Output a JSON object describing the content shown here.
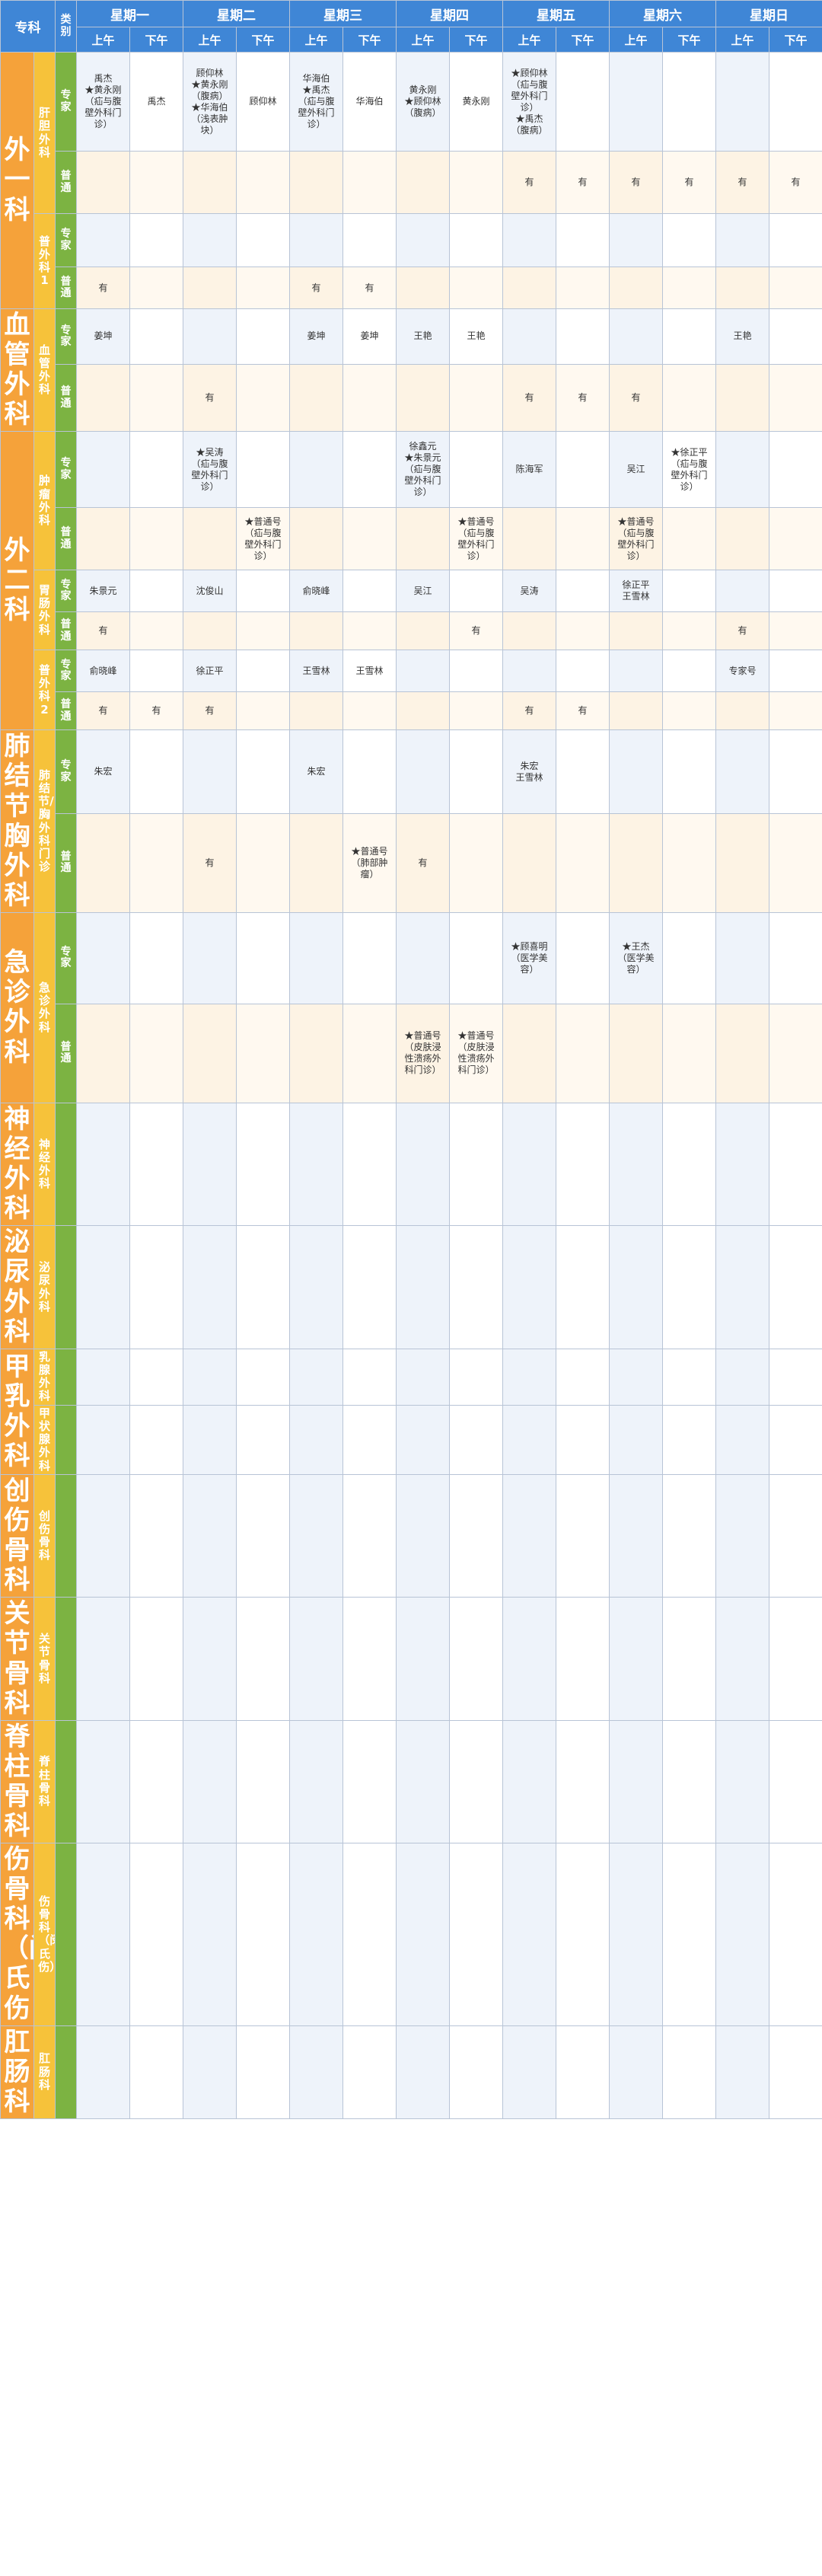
{
  "header": {
    "specialty_label": "专科",
    "type_label": "类别",
    "days": [
      "星期一",
      "星期二",
      "星期三",
      "星期四",
      "星期五",
      "星期六",
      "星期日"
    ],
    "am": "上午",
    "pm": "下午"
  },
  "groups": [
    {
      "name": "外一科",
      "subs": [
        {
          "name": "肝胆外科",
          "rows": [
            {
              "type": "专家",
              "h": 130,
              "cells": [
                "禹杰\n★黄永刚\n（疝与腹\n壁外科门\n诊）",
                "禹杰",
                "顾仰林\n★黄永刚\n（腹病）\n★华海伯\n（浅表肿\n块）",
                "顾仰林",
                "华海伯\n★禹杰\n（疝与腹\n壁外科门\n诊）",
                "华海伯",
                "黄永刚\n★顾仰林\n（腹病）",
                "黄永刚",
                "★顾仰林\n（疝与腹\n壁外科门\n诊）\n★禹杰\n（腹病）",
                "",
                "",
                "",
                "",
                ""
              ]
            },
            {
              "type": "普通",
              "h": 82,
              "cells": [
                "",
                "",
                "",
                "",
                "",
                "",
                "",
                "",
                "有",
                "有",
                "有",
                "有",
                "有",
                "有"
              ]
            }
          ]
        },
        {
          "name": "普外科1",
          "rows": [
            {
              "type": "专家",
              "h": 70,
              "cells": [
                "",
                "",
                "",
                "",
                "",
                "",
                "",
                "",
                "",
                "",
                "",
                "",
                "",
                ""
              ]
            },
            {
              "type": "普通",
              "h": 55,
              "cells": [
                "有",
                "",
                "",
                "",
                "有",
                "有",
                "",
                "",
                "",
                "",
                "",
                "",
                "",
                ""
              ]
            }
          ]
        }
      ]
    },
    {
      "name": "血管外科",
      "subs": [
        {
          "name": "血管外科",
          "rows": [
            {
              "type": "专家",
              "h": 70,
              "cells": [
                "姜坤",
                "",
                "",
                "",
                "姜坤",
                "姜坤",
                "王艳",
                "王艳",
                "",
                "",
                "",
                "",
                "王艳",
                ""
              ]
            },
            {
              "type": "普通",
              "h": 85,
              "cells": [
                "",
                "",
                "有",
                "",
                "",
                "",
                "",
                "",
                "有",
                "有",
                "有",
                "",
                "",
                ""
              ]
            }
          ]
        }
      ]
    },
    {
      "name": "外二科",
      "subs": [
        {
          "name": "肿瘤外科",
          "rows": [
            {
              "type": "专家",
              "h": 100,
              "cells": [
                "",
                "",
                "★吴涛\n（疝与腹\n壁外科门\n诊）",
                "",
                "",
                "",
                "徐鑫元\n★朱景元\n（疝与腹\n壁外科门\n诊）",
                "",
                "陈海军",
                "",
                "吴江",
                "★徐正平\n（疝与腹\n壁外科门\n诊）",
                "",
                ""
              ]
            },
            {
              "type": "普通",
              "h": 82,
              "cells": [
                "",
                "",
                "",
                "★普通号\n（疝与腹\n壁外科门\n诊）",
                "",
                "",
                "",
                "★普通号\n（疝与腹\n壁外科门\n诊）",
                "",
                "",
                "★普通号\n（疝与腹\n壁外科门\n诊）",
                "",
                "",
                ""
              ]
            }
          ]
        },
        {
          "name": "胃肠外科",
          "rows": [
            {
              "type": "专家",
              "h": 55,
              "cells": [
                "朱景元",
                "",
                "沈俊山",
                "",
                "俞晓峰",
                "",
                "吴江",
                "",
                "吴涛",
                "",
                "徐正平\n王雪林",
                "",
                "",
                ""
              ]
            },
            {
              "type": "普通",
              "h": 50,
              "cells": [
                "有",
                "",
                "",
                "",
                "",
                "",
                "",
                "有",
                "",
                "",
                "",
                "",
                "有",
                ""
              ]
            }
          ]
        },
        {
          "name": "普外科2",
          "rows": [
            {
              "type": "专家",
              "h": 55,
              "cells": [
                "俞晓峰",
                "",
                "徐正平",
                "",
                "王雪林",
                "王雪林",
                "",
                "",
                "",
                "",
                "",
                "",
                "专家号",
                ""
              ]
            },
            {
              "type": "普通",
              "h": 50,
              "cells": [
                "有",
                "有",
                "有",
                "",
                "",
                "",
                "",
                "",
                "有",
                "有",
                "",
                "",
                "",
                ""
              ]
            }
          ]
        }
      ]
    },
    {
      "name": "肺结节胸外科",
      "subs": [
        {
          "name": "肺结节/胸外科门诊",
          "rows": [
            {
              "type": "专家",
              "h": 80,
              "cells": [
                "朱宏",
                "",
                "",
                "",
                "朱宏",
                "",
                "",
                "",
                "朱宏\n王雪林",
                "",
                "",
                "",
                "",
                ""
              ]
            },
            {
              "type": "普通",
              "h": 95,
              "cells": [
                "",
                "",
                "有",
                "",
                "",
                "★普通号\n（肺部肿\n瘤）",
                "有",
                "",
                "",
                "",
                "",
                "",
                "",
                ""
              ]
            }
          ]
        }
      ]
    },
    {
      "name": "急诊外科",
      "subs": [
        {
          "name": "急诊外科",
          "rows": [
            {
              "type": "专家",
              "h": 120,
              "cells": [
                "",
                "",
                "",
                "",
                "",
                "",
                "",
                "",
                "★顾喜明\n（医学美\n容）",
                "",
                "★王杰\n（医学美\n容）",
                "",
                "",
                ""
              ]
            },
            {
              "type": "普通",
              "h": 130,
              "cells": [
                "",
                "",
                "",
                "",
                "",
                "",
                "★普通号\n（皮肤浸\n性溃疡外\n科门诊）",
                "★普通号\n（皮肤浸\n性溃疡外\n科门诊）",
                "",
                "",
                "",
                "",
                "",
                ""
              ]
            }
          ]
        }
      ]
    },
    {
      "name": "神经外科",
      "subs": [
        {
          "name": "神经外科",
          "rows": []
        }
      ]
    },
    {
      "name": "泌尿外科",
      "subs": [
        {
          "name": "泌尿外科",
          "rows": []
        }
      ]
    },
    {
      "name": "甲乳外科",
      "subs": [
        {
          "name": "乳腺外科",
          "rows": []
        },
        {
          "name": "甲状腺外科",
          "rows": []
        }
      ]
    },
    {
      "name": "创伤骨科",
      "subs": [
        {
          "name": "创伤骨科",
          "rows": []
        }
      ]
    },
    {
      "name": "关节骨科",
      "subs": [
        {
          "name": "关节骨科",
          "rows": []
        }
      ]
    },
    {
      "name": "脊柱骨科",
      "subs": [
        {
          "name": "脊柱骨科",
          "rows": []
        }
      ]
    },
    {
      "name": "伤骨科（闵氏伤",
      "subs": [
        {
          "name": "伤骨科（闵氏伤）",
          "rows": []
        }
      ]
    },
    {
      "name": "肛肠科",
      "subs": [
        {
          "name": "肛肠科",
          "rows": []
        }
      ]
    }
  ],
  "colors": {
    "header": "#3f86d6",
    "specialty": "#f5a23a",
    "subspecialty": "#f6c23a",
    "category": "#7cb342",
    "cell_tint": "#eef3fa"
  }
}
